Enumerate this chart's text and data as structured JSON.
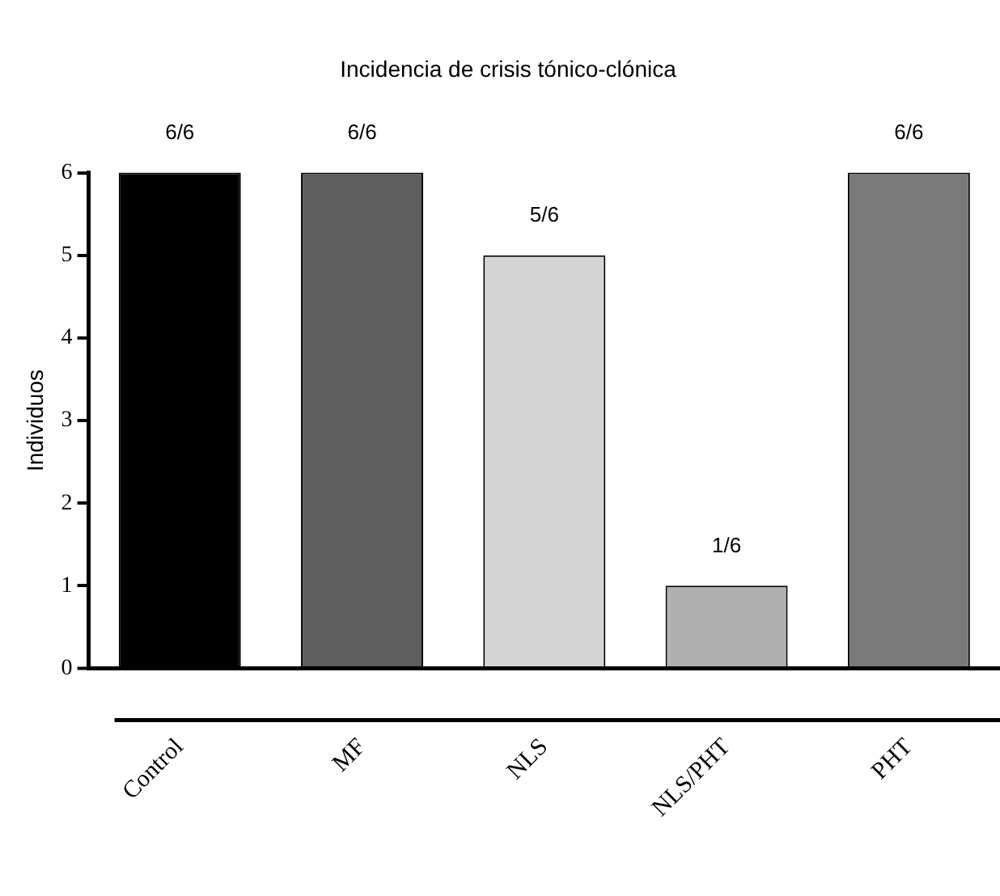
{
  "chart_data": {
    "type": "bar",
    "title": "Incidencia de crisis tónico-clónica",
    "ylabel": "Individuos",
    "categories": [
      "Control",
      "MF",
      "NLS",
      "NLS/PHT",
      "PHT"
    ],
    "values": [
      6,
      6,
      5,
      1,
      6
    ],
    "colors": [
      "#000000",
      "#5e5e5e",
      "#d4d4d4",
      "#b0b0b0",
      "#7a7a7a"
    ],
    "annotations": [
      {
        "text": "6/6",
        "x": "Control",
        "y": 6
      },
      {
        "text": "6/6",
        "x": "MF",
        "y": 6
      },
      {
        "text": "5/6",
        "x": "NLS",
        "y": 5
      },
      {
        "text": "1/6",
        "x": "NLS/PHT",
        "y": 1
      },
      {
        "text": "6/6",
        "x": "PHT",
        "y": 6
      }
    ],
    "ylim": [
      0,
      6
    ],
    "yticks": [
      0,
      1,
      2,
      3,
      4,
      5,
      6
    ],
    "grid": false,
    "legend": false
  }
}
